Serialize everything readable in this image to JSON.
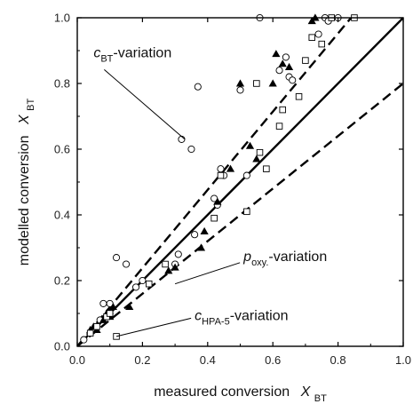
{
  "chart_data": {
    "type": "scatter",
    "xlim": [
      0.0,
      1.0
    ],
    "ylim": [
      0.0,
      1.0
    ],
    "xticks": [
      "0.0",
      "0.2",
      "0.4",
      "0.6",
      "0.8",
      "1.0"
    ],
    "yticks": [
      "0.0",
      "0.2",
      "0.4",
      "0.6",
      "0.8",
      "1.0"
    ],
    "xlabel": {
      "text": "measured conversion",
      "symbol": "X",
      "sub": "BT"
    },
    "ylabel": {
      "text": "modelled conversion",
      "symbol": "X",
      "sub": "BT"
    },
    "grid": false,
    "reference_lines": [
      {
        "style": "solid",
        "x": [
          0.0,
          1.0
        ],
        "y": [
          0.0,
          1.0
        ]
      },
      {
        "style": "dashed",
        "x": [
          0.0,
          0.84
        ],
        "y": [
          0.0,
          1.0
        ]
      },
      {
        "style": "dashed",
        "x": [
          0.0,
          1.0
        ],
        "y": [
          0.0,
          0.8
        ]
      }
    ],
    "series": [
      {
        "marker": "circle-open",
        "points": [
          [
            0.02,
            0.02
          ],
          [
            0.05,
            0.05
          ],
          [
            0.07,
            0.08
          ],
          [
            0.08,
            0.13
          ],
          [
            0.1,
            0.1
          ],
          [
            0.1,
            0.13
          ],
          [
            0.12,
            0.27
          ],
          [
            0.15,
            0.25
          ],
          [
            0.18,
            0.18
          ],
          [
            0.2,
            0.2
          ],
          [
            0.3,
            0.25
          ],
          [
            0.31,
            0.28
          ],
          [
            0.32,
            0.63
          ],
          [
            0.35,
            0.6
          ],
          [
            0.36,
            0.34
          ],
          [
            0.37,
            0.79
          ],
          [
            0.42,
            0.45
          ],
          [
            0.43,
            0.43
          ],
          [
            0.44,
            0.54
          ],
          [
            0.45,
            0.52
          ],
          [
            0.5,
            0.78
          ],
          [
            0.52,
            0.52
          ],
          [
            0.56,
            1.0
          ],
          [
            0.62,
            0.84
          ],
          [
            0.64,
            0.88
          ],
          [
            0.65,
            0.82
          ],
          [
            0.66,
            0.81
          ],
          [
            0.74,
            0.95
          ],
          [
            0.76,
            1.0
          ],
          [
            0.77,
            0.99
          ],
          [
            0.8,
            1.0
          ]
        ]
      },
      {
        "marker": "triangle-filled",
        "points": [
          [
            0.04,
            0.05
          ],
          [
            0.05,
            0.06
          ],
          [
            0.06,
            0.05
          ],
          [
            0.08,
            0.08
          ],
          [
            0.09,
            0.1
          ],
          [
            0.1,
            0.09
          ],
          [
            0.11,
            0.12
          ],
          [
            0.16,
            0.12
          ],
          [
            0.28,
            0.23
          ],
          [
            0.3,
            0.24
          ],
          [
            0.38,
            0.3
          ],
          [
            0.39,
            0.35
          ],
          [
            0.43,
            0.44
          ],
          [
            0.47,
            0.54
          ],
          [
            0.5,
            0.8
          ],
          [
            0.53,
            0.61
          ],
          [
            0.55,
            0.57
          ],
          [
            0.6,
            0.8
          ],
          [
            0.61,
            0.89
          ],
          [
            0.63,
            0.86
          ],
          [
            0.65,
            0.85
          ],
          [
            0.72,
            0.99
          ],
          [
            0.73,
            1.0
          ]
        ]
      },
      {
        "marker": "square-open",
        "points": [
          [
            0.04,
            0.04
          ],
          [
            0.06,
            0.06
          ],
          [
            0.09,
            0.09
          ],
          [
            0.1,
            0.1
          ],
          [
            0.12,
            0.03
          ],
          [
            0.22,
            0.19
          ],
          [
            0.27,
            0.25
          ],
          [
            0.42,
            0.39
          ],
          [
            0.44,
            0.52
          ],
          [
            0.52,
            0.41
          ],
          [
            0.55,
            0.8
          ],
          [
            0.56,
            0.59
          ],
          [
            0.58,
            0.54
          ],
          [
            0.62,
            0.67
          ],
          [
            0.63,
            0.72
          ],
          [
            0.68,
            0.76
          ],
          [
            0.7,
            0.87
          ],
          [
            0.72,
            0.94
          ],
          [
            0.75,
            0.92
          ],
          [
            0.78,
            1.0
          ],
          [
            0.85,
            1.0
          ]
        ]
      }
    ],
    "annotations": [
      {
        "symbol": "c",
        "sub": "BT",
        "suffix": "-variation",
        "x": 0.05,
        "y": 0.88,
        "points_to": [
          0.33,
          0.63
        ]
      },
      {
        "symbol": "p",
        "sub": "oxy.",
        "suffix": "-variation",
        "x": 0.51,
        "y": 0.26,
        "points_to": [
          0.3,
          0.19
        ]
      },
      {
        "symbol": "c",
        "sub": "HPA-5",
        "suffix": "-variation",
        "x": 0.36,
        "y": 0.08,
        "points_to": [
          0.12,
          0.03
        ]
      }
    ]
  }
}
